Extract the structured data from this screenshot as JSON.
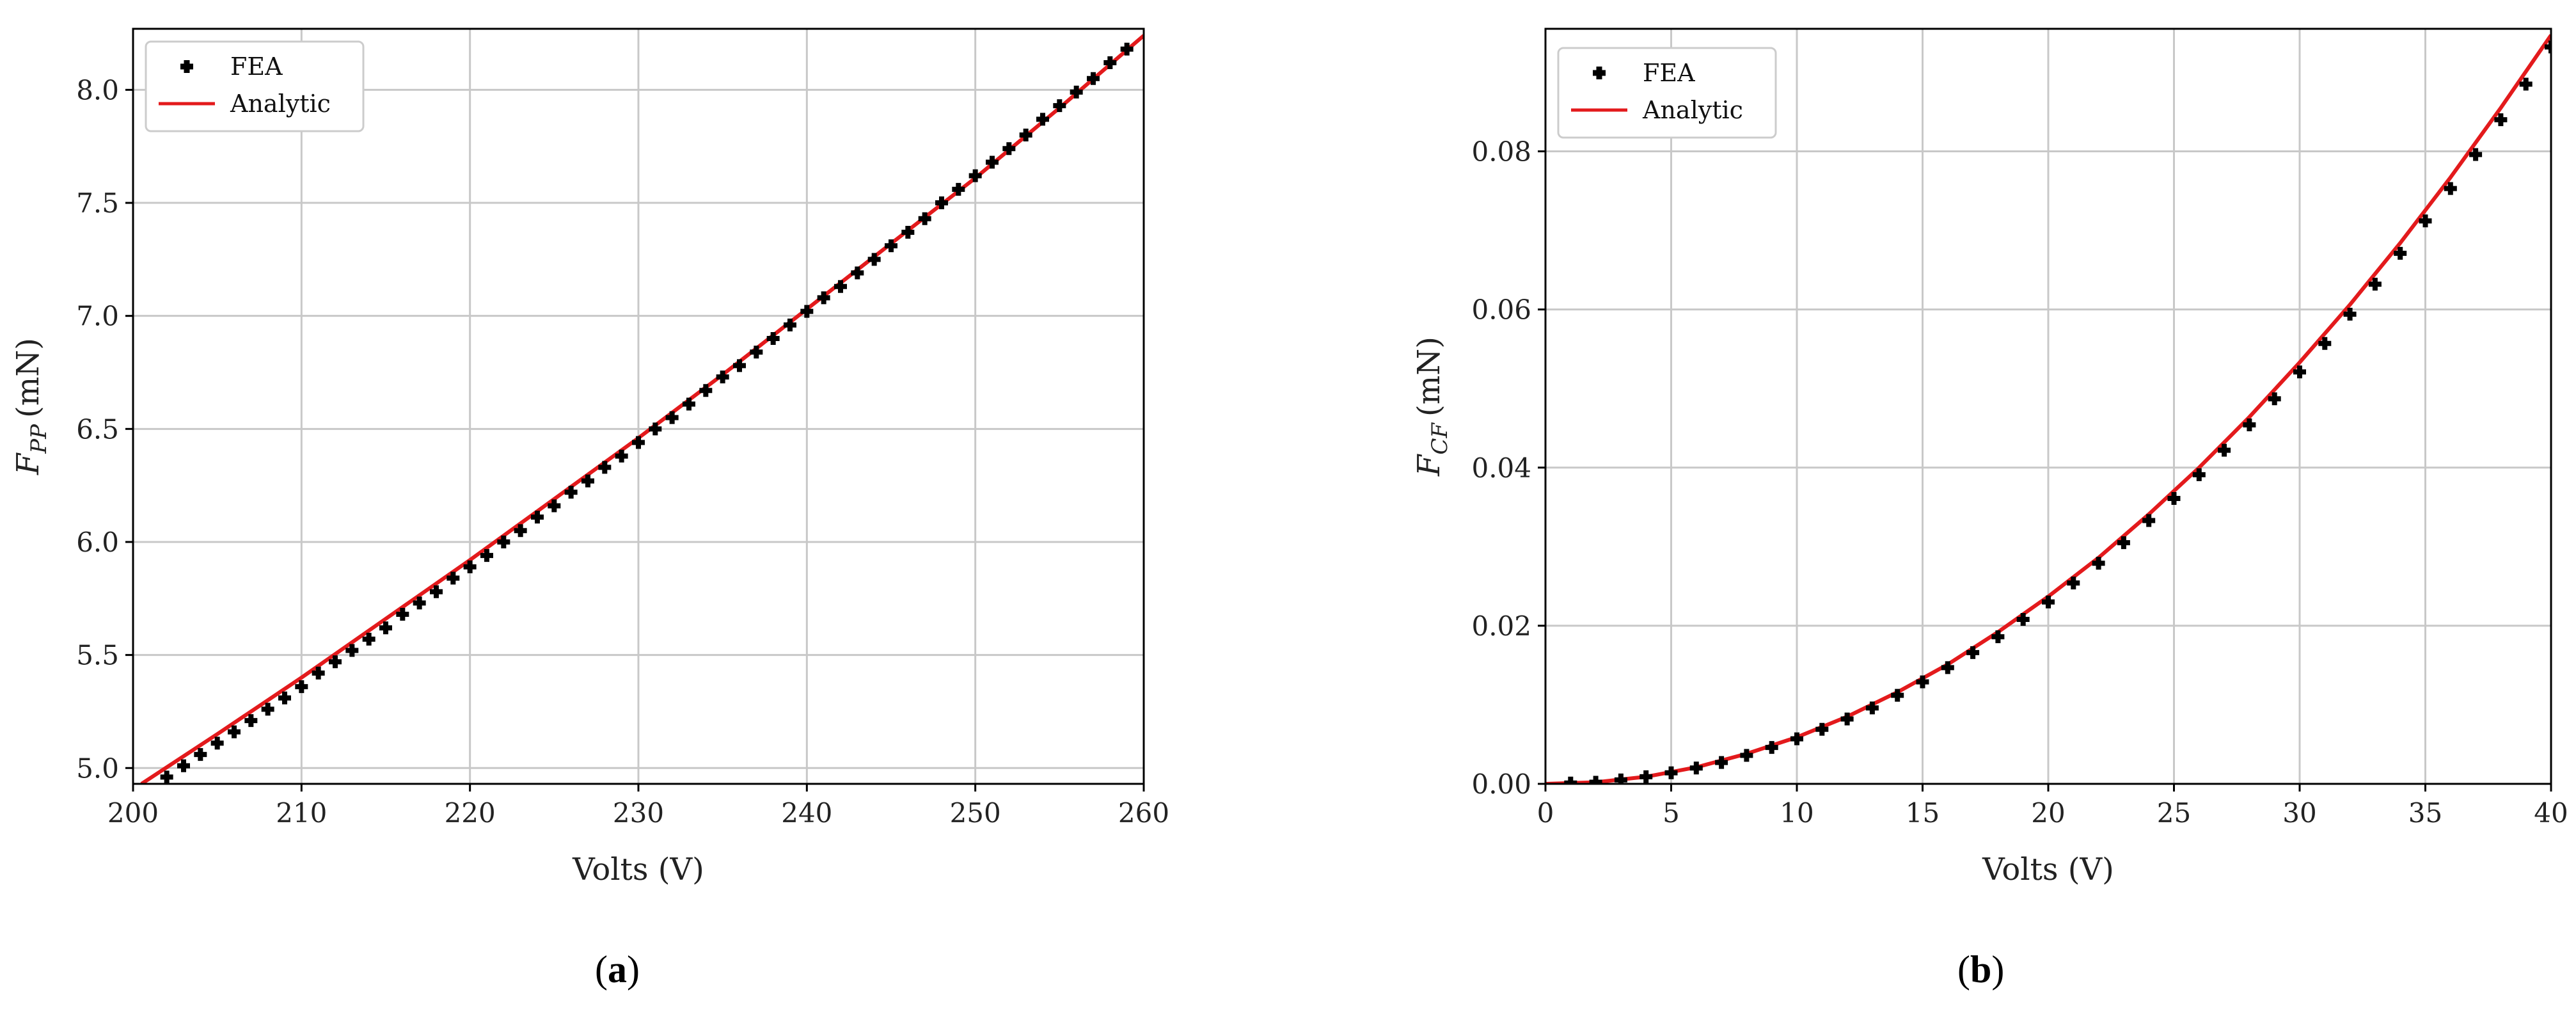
{
  "chart_data": [
    {
      "type": "scatter",
      "caption": "(a)",
      "xlabel": "Volts (V)",
      "ylabel_main": "F",
      "ylabel_sub": "PP",
      "ylabel_unit": "(mN)",
      "xlim": [
        200,
        260
      ],
      "ylim": [
        4.93,
        8.27
      ],
      "xticks": [
        "200",
        "210",
        "220",
        "230",
        "240",
        "250",
        "260"
      ],
      "yticks": [
        "5.0",
        "5.5",
        "6.0",
        "6.5",
        "7.0",
        "7.5",
        "8.0"
      ],
      "grid": true,
      "legend_position": "top-left",
      "series": [
        {
          "name": "FEA",
          "kind": "markers",
          "color": "#000000",
          "x": [
            202,
            203,
            204,
            205,
            206,
            207,
            208,
            209,
            210,
            211,
            212,
            213,
            214,
            215,
            216,
            217,
            218,
            219,
            220,
            221,
            222,
            223,
            224,
            225,
            226,
            227,
            228,
            229,
            230,
            231,
            232,
            233,
            234,
            235,
            236,
            237,
            238,
            239,
            240,
            241,
            242,
            243,
            244,
            245,
            246,
            247,
            248,
            249,
            250,
            251,
            252,
            253,
            254,
            255,
            256,
            257,
            258,
            259
          ],
          "y": [
            4.96,
            5.01,
            5.06,
            5.11,
            5.16,
            5.21,
            5.26,
            5.31,
            5.36,
            5.42,
            5.47,
            5.52,
            5.57,
            5.62,
            5.68,
            5.73,
            5.78,
            5.84,
            5.89,
            5.94,
            6.0,
            6.05,
            6.11,
            6.16,
            6.22,
            6.27,
            6.33,
            6.38,
            6.44,
            6.5,
            6.55,
            6.61,
            6.67,
            6.73,
            6.78,
            6.84,
            6.9,
            6.96,
            7.02,
            7.08,
            7.13,
            7.19,
            7.25,
            7.31,
            7.37,
            7.43,
            7.5,
            7.56,
            7.62,
            7.68,
            7.74,
            7.8,
            7.87,
            7.93,
            7.99,
            8.05,
            8.12,
            8.18
          ]
        },
        {
          "name": "Analytic",
          "kind": "line",
          "color": "#e31a1c",
          "x": [
            200.5,
            205,
            210,
            215,
            220,
            225,
            230,
            235,
            240,
            245,
            250,
            255,
            260
          ],
          "y": [
            4.93,
            5.15,
            5.4,
            5.66,
            5.92,
            6.19,
            6.46,
            6.74,
            7.03,
            7.32,
            7.61,
            7.92,
            8.24
          ]
        }
      ]
    },
    {
      "type": "scatter",
      "caption": "(b)",
      "xlabel": "Volts (V)",
      "ylabel_main": "F",
      "ylabel_sub": "CF",
      "ylabel_unit": "(mN)",
      "xlim": [
        0,
        40
      ],
      "ylim": [
        0,
        0.0955
      ],
      "xticks": [
        "0",
        "5",
        "10",
        "15",
        "20",
        "25",
        "30",
        "35",
        "40"
      ],
      "yticks": [
        "0.00",
        "0.02",
        "0.04",
        "0.06",
        "0.08"
      ],
      "grid": true,
      "legend_position": "top-left",
      "series": [
        {
          "name": "FEA",
          "kind": "markers",
          "color": "#000000",
          "x": [
            1,
            2,
            3,
            4,
            5,
            6,
            7,
            8,
            9,
            10,
            11,
            12,
            13,
            14,
            15,
            16,
            17,
            18,
            19,
            20,
            21,
            22,
            23,
            24,
            25,
            26,
            27,
            28,
            29,
            30,
            31,
            32,
            33,
            34,
            35,
            36,
            37,
            38,
            39,
            40
          ],
          "y": [
            0.0001,
            0.0002,
            0.0005,
            0.0009,
            0.0014,
            0.002,
            0.0027,
            0.0036,
            0.0046,
            0.0057,
            0.0069,
            0.0082,
            0.0096,
            0.0112,
            0.0129,
            0.0147,
            0.0166,
            0.0186,
            0.0208,
            0.023,
            0.0254,
            0.0279,
            0.0305,
            0.0333,
            0.0361,
            0.0391,
            0.0422,
            0.0454,
            0.0487,
            0.0521,
            0.0557,
            0.0594,
            0.0632,
            0.0671,
            0.0712,
            0.0753,
            0.0796,
            0.084,
            0.0885,
            0.0932
          ]
        },
        {
          "name": "Analytic",
          "kind": "line",
          "color": "#e31a1c",
          "x": [
            0,
            2,
            4,
            6,
            8,
            10,
            12,
            14,
            16,
            18,
            20,
            22,
            24,
            26,
            28,
            30,
            32,
            34,
            36,
            38,
            40
          ],
          "y": [
            0,
            0.0002,
            0.0009,
            0.0021,
            0.0038,
            0.0059,
            0.0085,
            0.0116,
            0.0151,
            0.0192,
            0.0237,
            0.0286,
            0.0341,
            0.04,
            0.0464,
            0.0533,
            0.0606,
            0.0684,
            0.0767,
            0.0855,
            0.0947
          ]
        }
      ]
    }
  ]
}
